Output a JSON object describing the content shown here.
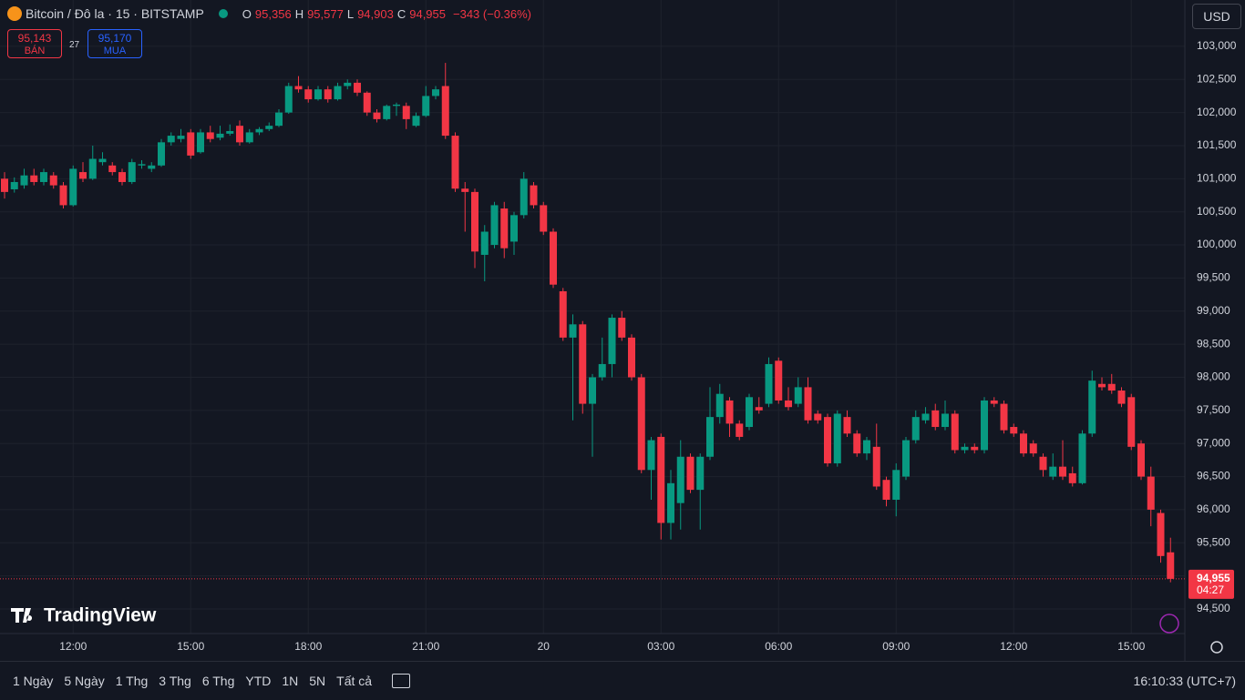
{
  "header": {
    "symbol": "Bitcoin / Đô la · 15 · BITSTAMP",
    "o_label": "O",
    "o": "95,356",
    "h_label": "H",
    "h": "95,577",
    "l_label": "L",
    "l": "94,903",
    "c_label": "C",
    "c": "94,955",
    "change": "−343 (−0.36%)",
    "currency": "USD"
  },
  "trade": {
    "sell_price": "95,143",
    "sell": "BÁN",
    "spread": "27",
    "buy_price": "95,170",
    "buy": "MUA"
  },
  "chart_data": {
    "type": "candlestick",
    "categories": [
      null,
      null,
      null,
      null,
      null,
      null,
      null,
      "12:00",
      null,
      null,
      null,
      null,
      null,
      null,
      null,
      null,
      null,
      null,
      null,
      "15:00",
      null,
      null,
      null,
      null,
      null,
      null,
      null,
      null,
      null,
      null,
      null,
      "18:00",
      null,
      null,
      null,
      null,
      null,
      null,
      null,
      null,
      null,
      null,
      null,
      "21:00",
      null,
      null,
      null,
      null,
      null,
      null,
      null,
      null,
      null,
      null,
      null,
      "20",
      null,
      null,
      null,
      null,
      null,
      null,
      null,
      null,
      null,
      null,
      null,
      "03:00",
      null,
      null,
      null,
      null,
      null,
      null,
      null,
      null,
      null,
      null,
      null,
      "06:00",
      null,
      null,
      null,
      null,
      null,
      null,
      null,
      null,
      null,
      null,
      null,
      "09:00",
      null,
      null,
      null,
      null,
      null,
      null,
      null,
      null,
      null,
      null,
      null,
      "12:00",
      null,
      null,
      null,
      null,
      null,
      null,
      null,
      null,
      null,
      null,
      null,
      "15:00",
      null,
      null,
      null,
      null
    ],
    "open": [
      101000,
      100840,
      100900,
      101050,
      100950,
      101050,
      100900,
      100600,
      101100,
      101000,
      101250,
      101200,
      101100,
      100950,
      101200,
      101150,
      101200,
      101550,
      101600,
      101700,
      101400,
      101700,
      101620,
      101680,
      101800,
      101550,
      101700,
      101750,
      101800,
      102000,
      102400,
      102350,
      102200,
      102350,
      102200,
      102400,
      102450,
      102300,
      102000,
      101900,
      102100,
      102100,
      101800,
      101950,
      102250,
      102400,
      101650,
      100850,
      100800,
      99850,
      100000,
      100550,
      100050,
      100450,
      100900,
      100600,
      100200,
      99300,
      98600,
      98800,
      97600,
      98000,
      98200,
      98900,
      98600,
      98000,
      96600,
      97100,
      95800,
      96100,
      96800,
      96300,
      96800,
      97400,
      97650,
      97300,
      97250,
      97550,
      97600,
      98250,
      97650,
      97600,
      97850,
      97450,
      97400,
      96700,
      97400,
      97150,
      96850,
      96950,
      96450,
      96150,
      96500,
      97050,
      97350,
      97500,
      97250,
      97450,
      96900,
      96950,
      96900,
      97650,
      97600,
      97250,
      97150,
      97000,
      96800,
      96500,
      96650,
      96550,
      96400,
      97150,
      97900,
      97900,
      97800,
      97700,
      97000,
      96500,
      95950,
      95356
    ],
    "high": [
      101100,
      101020,
      101150,
      101150,
      101150,
      101100,
      100950,
      101200,
      101250,
      101500,
      101400,
      101250,
      101150,
      101300,
      101280,
      101250,
      101600,
      101700,
      101750,
      101750,
      101750,
      101800,
      101800,
      101820,
      101880,
      101750,
      101780,
      101850,
      102050,
      102450,
      102550,
      102400,
      102400,
      102400,
      102450,
      102500,
      102500,
      102320,
      102050,
      102120,
      102150,
      102150,
      102000,
      102400,
      102400,
      102750,
      101700,
      100950,
      100850,
      100300,
      100650,
      100650,
      100500,
      101100,
      100950,
      100650,
      100250,
      99350,
      98950,
      98850,
      98050,
      98600,
      98950,
      99000,
      98650,
      98050,
      97100,
      97150,
      96600,
      97050,
      96850,
      96850,
      97850,
      97900,
      97700,
      97350,
      97750,
      97700,
      98300,
      98300,
      97850,
      98000,
      98000,
      97500,
      97450,
      97500,
      97500,
      97200,
      97100,
      97300,
      96500,
      96700,
      97100,
      97500,
      97550,
      97600,
      97650,
      97500,
      97000,
      97000,
      97700,
      97700,
      97650,
      97300,
      97200,
      97050,
      96850,
      96850,
      97050,
      96650,
      97200,
      98100,
      98000,
      98050,
      97850,
      97750,
      97050,
      96650,
      96000,
      95577
    ],
    "low": [
      100700,
      100790,
      100850,
      100900,
      100900,
      100850,
      100550,
      100580,
      100950,
      100980,
      101200,
      101050,
      100900,
      100920,
      101150,
      101100,
      101180,
      101500,
      101550,
      101300,
      101380,
      101550,
      101580,
      101650,
      101500,
      101530,
      101660,
      101720,
      101780,
      101980,
      102300,
      102150,
      102180,
      102150,
      102180,
      102350,
      102250,
      101950,
      101850,
      101880,
      101950,
      101750,
      101780,
      101930,
      102200,
      101600,
      100800,
      100200,
      99650,
      99450,
      99950,
      99800,
      99850,
      100400,
      100550,
      100150,
      99350,
      98550,
      97350,
      97450,
      96800,
      97950,
      98000,
      98550,
      97950,
      96550,
      96150,
      95550,
      95550,
      95700,
      96250,
      95700,
      96750,
      97300,
      97100,
      97050,
      97200,
      97450,
      97550,
      97600,
      97500,
      97550,
      97300,
      97300,
      96650,
      96650,
      97100,
      96800,
      96750,
      96300,
      96050,
      95900,
      96450,
      97000,
      97300,
      97200,
      97200,
      96850,
      96850,
      96850,
      96850,
      97550,
      97150,
      97100,
      96800,
      96800,
      96500,
      96450,
      96450,
      96350,
      96380,
      97100,
      97800,
      97750,
      97550,
      96900,
      96450,
      95750,
      95200,
      94903
    ],
    "close": [
      100800,
      100950,
      101050,
      100950,
      101100,
      100900,
      100600,
      101150,
      101000,
      101300,
      101300,
      101100,
      100950,
      101250,
      101220,
      101200,
      101550,
      101650,
      101650,
      101350,
      101700,
      101600,
      101680,
      101720,
      101550,
      101700,
      101750,
      101800,
      102000,
      102400,
      102350,
      102200,
      102350,
      102200,
      102400,
      102450,
      102300,
      102000,
      101900,
      102100,
      102120,
      101900,
      101950,
      102250,
      102350,
      101650,
      100850,
      100800,
      99900,
      100200,
      100600,
      99950,
      100450,
      101000,
      100600,
      100200,
      99400,
      98600,
      98800,
      97600,
      98000,
      98200,
      98900,
      98600,
      98000,
      96600,
      97050,
      95800,
      96400,
      96800,
      96300,
      96800,
      97400,
      97750,
      97300,
      97100,
      97700,
      97500,
      98200,
      97650,
      97550,
      97850,
      97350,
      97350,
      96700,
      97450,
      97150,
      96850,
      97050,
      96350,
      96150,
      96600,
      97050,
      97400,
      97450,
      97250,
      97450,
      96900,
      96950,
      96900,
      97650,
      97600,
      97200,
      97150,
      96850,
      96850,
      96600,
      96650,
      96500,
      96400,
      97150,
      97950,
      97850,
      97800,
      97600,
      96950,
      96500,
      96000,
      95300,
      94955
    ],
    "up_color": "#089981",
    "down_color": "#f23645",
    "ylim": [
      93730,
      103700
    ],
    "yticks": [
      {
        "value": 94500,
        "label": "94,500"
      },
      {
        "value": 95000,
        "label": "95,000"
      },
      {
        "value": 95500,
        "label": "95,500"
      },
      {
        "value": 96000,
        "label": "96,000"
      },
      {
        "value": 96500,
        "label": "96,500"
      },
      {
        "value": 97000,
        "label": "97,000"
      },
      {
        "value": 97500,
        "label": "97,500"
      },
      {
        "value": 98000,
        "label": "98,000"
      },
      {
        "value": 98500,
        "label": "98,500"
      },
      {
        "value": 99000,
        "label": "99,000"
      },
      {
        "value": 99500,
        "label": "99,500"
      },
      {
        "value": 100000,
        "label": "100,000"
      },
      {
        "value": 100500,
        "label": "100,500"
      },
      {
        "value": 101000,
        "label": "101,000"
      },
      {
        "value": 101500,
        "label": "101,500"
      },
      {
        "value": 102000,
        "label": "102,000"
      },
      {
        "value": 102500,
        "label": "102,500"
      },
      {
        "value": 103000,
        "label": "103,000"
      }
    ],
    "grid": true,
    "last_price_label": "94,955",
    "countdown": "04:27"
  },
  "logo": "TradingView",
  "ranges": [
    "1 Ngày",
    "5 Ngày",
    "1 Thg",
    "3 Thg",
    "6 Thg",
    "YTD",
    "1N",
    "5N",
    "Tất cả"
  ],
  "clock": "16:10:33 (UTC+7)"
}
